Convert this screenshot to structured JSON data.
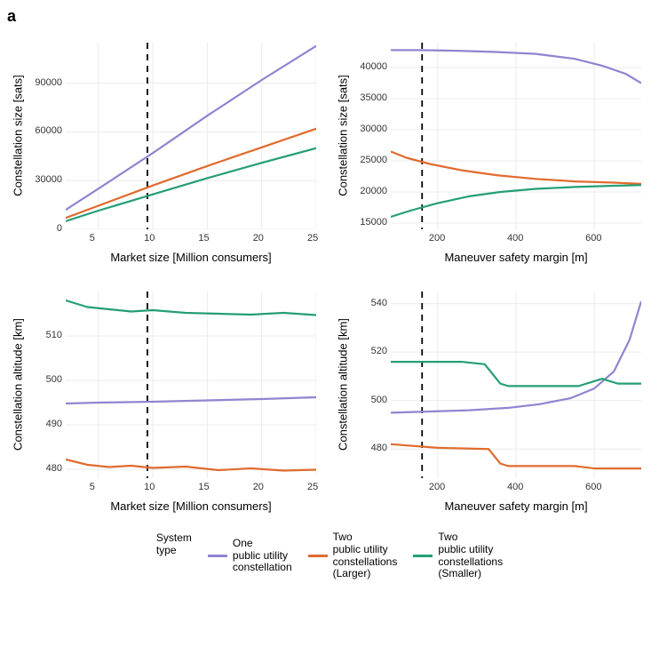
{
  "panel_label": "a",
  "colors": {
    "one": "#9084d1",
    "two_larger": "#e06b2e",
    "two_smaller": "#249e76",
    "grid": "#ebebeb",
    "axis_text": "#333333",
    "vline": "#000000",
    "background": "#ffffff"
  },
  "line_width": 2.2,
  "vline_width": 1.8,
  "legend": {
    "title": "System\ntype",
    "items": [
      {
        "key": "one",
        "label": "One\npublic utility\nconstellation"
      },
      {
        "key": "two_larger",
        "label": "Two\npublic utility\nconstellations\n(Larger)"
      },
      {
        "key": "two_smaller",
        "label": "Two\npublic utility\nconstellations\n(Smaller)"
      }
    ]
  },
  "charts": [
    {
      "id": "tl",
      "ylabel": "Constellation size [sats]",
      "xlabel": "Market size [Million consumers]",
      "xlim": [
        2,
        25
      ],
      "xticks": [
        5,
        10,
        15,
        20,
        25
      ],
      "ylim": [
        0,
        115000
      ],
      "yticks": [
        0,
        30000,
        60000,
        90000
      ],
      "vline_x": 9.5,
      "series": {
        "one": {
          "x": [
            2,
            5,
            10,
            15,
            20,
            25
          ],
          "y": [
            12000,
            25000,
            47000,
            70000,
            92000,
            113000
          ]
        },
        "two_larger": {
          "x": [
            2,
            5,
            10,
            15,
            20,
            25
          ],
          "y": [
            7000,
            14500,
            27000,
            39000,
            50500,
            62000
          ]
        },
        "two_smaller": {
          "x": [
            2,
            5,
            10,
            15,
            20,
            25
          ],
          "y": [
            5000,
            11500,
            21500,
            31500,
            41000,
            50000
          ]
        }
      }
    },
    {
      "id": "tr",
      "ylabel": "Constellation size [sats]",
      "xlabel": "Maneuver safety margin [m]",
      "xlim": [
        80,
        720
      ],
      "xticks": [
        200,
        400,
        600
      ],
      "ylim": [
        14000,
        44000
      ],
      "yticks": [
        15000,
        20000,
        25000,
        30000,
        35000,
        40000
      ],
      "vline_x": 160,
      "series": {
        "one": {
          "x": [
            80,
            150,
            250,
            350,
            450,
            550,
            620,
            680,
            720
          ],
          "y": [
            42800,
            42800,
            42700,
            42500,
            42200,
            41400,
            40300,
            39000,
            37500
          ]
        },
        "two_larger": {
          "x": [
            80,
            120,
            180,
            260,
            350,
            450,
            550,
            650,
            720
          ],
          "y": [
            26500,
            25500,
            24500,
            23500,
            22700,
            22100,
            21700,
            21500,
            21300
          ]
        },
        "two_smaller": {
          "x": [
            80,
            130,
            200,
            280,
            360,
            450,
            550,
            650,
            720
          ],
          "y": [
            16000,
            17000,
            18200,
            19300,
            20000,
            20500,
            20800,
            21000,
            21100
          ]
        }
      }
    },
    {
      "id": "bl",
      "ylabel": "Constellation altitude [km]",
      "xlabel": "Market size [Million consumers]",
      "xlim": [
        2,
        25
      ],
      "xticks": [
        5,
        10,
        15,
        20,
        25
      ],
      "ylim": [
        478,
        520
      ],
      "yticks": [
        480,
        490,
        500,
        510
      ],
      "vline_x": 9.5,
      "series": {
        "one": {
          "x": [
            2,
            5,
            10,
            15,
            20,
            25
          ],
          "y": [
            494.8,
            495.0,
            495.2,
            495.5,
            495.8,
            496.2
          ]
        },
        "two_larger": {
          "x": [
            2,
            4,
            6,
            8,
            10,
            13,
            16,
            19,
            22,
            25
          ],
          "y": [
            482.2,
            481.0,
            480.5,
            480.8,
            480.3,
            480.6,
            479.8,
            480.2,
            479.7,
            479.9
          ]
        },
        "two_smaller": {
          "x": [
            2,
            4,
            6,
            8,
            10,
            13,
            16,
            19,
            22,
            25
          ],
          "y": [
            518.0,
            516.5,
            516.0,
            515.5,
            515.8,
            515.2,
            515.0,
            514.8,
            515.2,
            514.7
          ]
        }
      }
    },
    {
      "id": "br",
      "ylabel": "Constellation altitude [km]",
      "xlabel": "Maneuver safety margin [m]",
      "xlim": [
        80,
        720
      ],
      "xticks": [
        200,
        400,
        600
      ],
      "ylim": [
        468,
        545
      ],
      "yticks": [
        480,
        500,
        520,
        540
      ],
      "vline_x": 160,
      "series": {
        "one": {
          "x": [
            80,
            180,
            280,
            380,
            460,
            540,
            600,
            650,
            690,
            720
          ],
          "y": [
            495,
            495.5,
            496,
            497,
            498.5,
            501,
            505,
            512,
            525,
            541
          ]
        },
        "two_larger": {
          "x": [
            80,
            200,
            330,
            360,
            380,
            550,
            600,
            720
          ],
          "y": [
            482,
            480.5,
            480,
            474,
            473,
            473,
            472,
            472
          ]
        },
        "two_smaller": {
          "x": [
            80,
            260,
            320,
            360,
            380,
            560,
            620,
            660,
            720
          ],
          "y": [
            516,
            516,
            515,
            507,
            506,
            506,
            509,
            507,
            507
          ]
        }
      }
    }
  ]
}
